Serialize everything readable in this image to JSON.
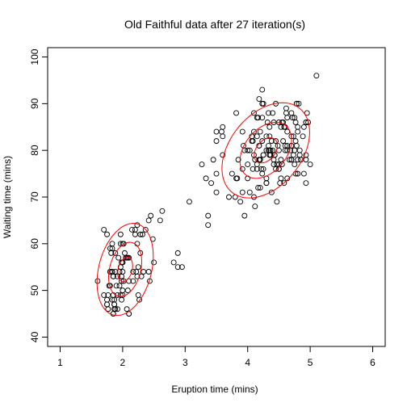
{
  "chart_data": {
    "type": "scatter",
    "title": "Old Faithful data after 27 iteration(s)",
    "xlabel": "Eruption time (mins)",
    "ylabel": "Waiting time (mins)",
    "xlim": [
      0.8,
      6.2
    ],
    "ylim": [
      38,
      102
    ],
    "xticks": [
      "1",
      "2",
      "3",
      "4",
      "5",
      "6"
    ],
    "yticks": [
      "40",
      "50",
      "60",
      "70",
      "80",
      "90",
      "100"
    ],
    "grid": false,
    "contour_color": "#ff0000",
    "clusters": [
      {
        "mean": [
          2.04,
          54.5
        ],
        "cov": [
          [
            0.07,
            0.44
          ],
          [
            0.44,
            33.7
          ]
        ]
      },
      {
        "mean": [
          4.29,
          80.0
        ],
        "cov": [
          [
            0.17,
            0.94
          ],
          [
            0.94,
            36.0
          ]
        ]
      }
    ],
    "contour_levels": [
      0.45,
      1.0,
      1.7
    ],
    "points": [
      [
        3.6,
        79
      ],
      [
        1.8,
        54
      ],
      [
        3.333,
        74
      ],
      [
        2.283,
        62
      ],
      [
        4.533,
        85
      ],
      [
        2.883,
        55
      ],
      [
        4.7,
        88
      ],
      [
        3.6,
        85
      ],
      [
        1.95,
        51
      ],
      [
        4.35,
        85
      ],
      [
        1.833,
        54
      ],
      [
        3.917,
        84
      ],
      [
        4.2,
        78
      ],
      [
        1.75,
        47
      ],
      [
        4.7,
        83
      ],
      [
        2.167,
        52
      ],
      [
        1.75,
        62
      ],
      [
        4.8,
        84
      ],
      [
        1.6,
        52
      ],
      [
        4.25,
        79
      ],
      [
        1.8,
        51
      ],
      [
        1.75,
        47
      ],
      [
        3.45,
        78
      ],
      [
        3.067,
        69
      ],
      [
        4.533,
        74
      ],
      [
        3.6,
        83
      ],
      [
        1.967,
        55
      ],
      [
        4.083,
        76
      ],
      [
        3.85,
        78
      ],
      [
        4.433,
        79
      ],
      [
        4.3,
        73
      ],
      [
        4.467,
        77
      ],
      [
        3.367,
        66
      ],
      [
        4.033,
        80
      ],
      [
        3.833,
        74
      ],
      [
        2.017,
        52
      ],
      [
        1.867,
        48
      ],
      [
        4.833,
        80
      ],
      [
        1.833,
        59
      ],
      [
        4.783,
        90
      ],
      [
        1.883,
        54
      ],
      [
        4.75,
        87
      ],
      [
        2.1,
        45
      ],
      [
        4.333,
        88
      ],
      [
        2.0,
        50
      ],
      [
        4.883,
        83
      ],
      [
        1.767,
        49
      ],
      [
        4.767,
        82
      ],
      [
        4.967,
        86
      ],
      [
        2.333,
        54
      ],
      [
        4.5,
        77
      ],
      [
        3.933,
        81
      ],
      [
        4.0,
        77
      ],
      [
        2.217,
        54
      ],
      [
        4.333,
        80
      ],
      [
        2.633,
        67
      ],
      [
        1.917,
        53
      ],
      [
        4.583,
        85
      ],
      [
        1.817,
        58
      ],
      [
        4.8,
        78
      ],
      [
        1.8,
        59
      ],
      [
        3.8,
        70
      ],
      [
        4.0,
        74
      ],
      [
        2.45,
        66
      ],
      [
        4.1,
        84
      ],
      [
        1.933,
        57
      ],
      [
        4.117,
        68
      ],
      [
        1.7,
        63
      ],
      [
        4.183,
        78
      ],
      [
        2.2,
        63
      ],
      [
        1.883,
        58
      ],
      [
        4.417,
        86
      ],
      [
        4.633,
        81
      ],
      [
        2.05,
        57
      ],
      [
        4.517,
        73
      ],
      [
        2.083,
        50
      ],
      [
        4.417,
        78
      ],
      [
        4.35,
        80
      ],
      [
        2.367,
        63
      ],
      [
        4.733,
        79
      ],
      [
        2.3,
        53
      ],
      [
        4.617,
        89
      ],
      [
        4.6,
        80
      ],
      [
        3.5,
        75
      ],
      [
        4.667,
        78
      ],
      [
        1.9,
        51
      ],
      [
        4.417,
        77
      ],
      [
        2.1,
        57
      ],
      [
        4.617,
        88
      ],
      [
        2.433,
        52
      ],
      [
        4.7,
        81
      ],
      [
        2.067,
        46
      ],
      [
        4.733,
        83
      ],
      [
        4.233,
        87
      ],
      [
        1.983,
        53
      ],
      [
        4.217,
        76
      ],
      [
        1.85,
        45
      ],
      [
        4.1,
        79
      ],
      [
        1.967,
        49
      ],
      [
        4.783,
        81
      ],
      [
        2.25,
        49
      ],
      [
        4.15,
        77
      ],
      [
        2.233,
        60
      ],
      [
        4.35,
        83
      ],
      [
        2.417,
        65
      ],
      [
        4.533,
        78
      ],
      [
        1.917,
        49
      ],
      [
        4.2,
        72
      ],
      [
        3.75,
        75
      ],
      [
        2.167,
        54
      ],
      [
        1.867,
        47
      ],
      [
        4.5,
        86
      ],
      [
        2.0,
        56
      ],
      [
        4.833,
        79
      ],
      [
        1.983,
        52
      ],
      [
        4.583,
        73
      ],
      [
        1.867,
        47
      ],
      [
        4.367,
        79
      ],
      [
        2.25,
        55
      ],
      [
        4.45,
        76
      ],
      [
        1.833,
        54
      ],
      [
        4.567,
        82
      ],
      [
        1.7,
        49
      ],
      [
        4.633,
        74
      ],
      [
        2.317,
        62
      ],
      [
        4.7,
        78
      ],
      [
        1.867,
        46
      ],
      [
        4.233,
        75
      ],
      [
        1.75,
        48
      ],
      [
        4.633,
        84
      ],
      [
        2.033,
        58
      ],
      [
        4.183,
        81
      ],
      [
        4.1,
        70
      ],
      [
        1.967,
        60
      ],
      [
        4.5,
        76
      ],
      [
        3.367,
        64
      ],
      [
        4.033,
        71
      ],
      [
        1.917,
        46
      ],
      [
        3.883,
        69
      ],
      [
        4.8,
        75
      ],
      [
        1.833,
        60
      ],
      [
        4.933,
        73
      ],
      [
        1.983,
        48
      ],
      [
        4.067,
        83
      ],
      [
        2.283,
        58
      ],
      [
        4.7,
        81
      ],
      [
        3.5,
        71
      ],
      [
        4.067,
        82
      ],
      [
        2.0,
        54
      ],
      [
        4.767,
        86
      ],
      [
        2.1,
        52
      ],
      [
        4.3,
        80
      ],
      [
        1.967,
        62
      ],
      [
        4.167,
        72
      ],
      [
        2.6,
        65
      ],
      [
        4.183,
        81
      ],
      [
        2.95,
        55
      ],
      [
        4.3,
        83
      ],
      [
        3.417,
        73
      ],
      [
        1.833,
        48
      ],
      [
        4.567,
        86
      ],
      [
        1.85,
        53
      ],
      [
        4.8,
        85
      ],
      [
        2.233,
        64
      ],
      [
        4.1,
        88
      ],
      [
        4.717,
        87
      ],
      [
        1.983,
        56
      ],
      [
        4.483,
        81
      ],
      [
        1.783,
        51
      ],
      [
        4.4,
        80
      ],
      [
        4.75,
        77
      ],
      [
        2.017,
        60
      ],
      [
        4.933,
        86
      ],
      [
        3.5,
        84
      ],
      [
        4.25,
        76
      ],
      [
        4.35,
        79
      ],
      [
        3.95,
        80
      ],
      [
        4.45,
        82
      ],
      [
        2.0,
        60
      ],
      [
        4.933,
        86
      ],
      [
        1.8,
        54
      ],
      [
        4.633,
        80
      ],
      [
        4.25,
        90
      ],
      [
        4.9,
        85
      ],
      [
        4.317,
        86
      ],
      [
        4.95,
        88
      ],
      [
        4.2,
        78
      ],
      [
        4.45,
        90
      ],
      [
        5.1,
        96
      ],
      [
        4.55,
        77
      ],
      [
        3.917,
        76
      ],
      [
        4.55,
        86
      ],
      [
        2.483,
        61
      ],
      [
        1.85,
        45
      ],
      [
        4.2,
        84
      ],
      [
        2.2,
        62
      ],
      [
        4.3,
        74
      ],
      [
        2.083,
        57
      ],
      [
        4.467,
        69
      ],
      [
        2.233,
        53
      ],
      [
        4.117,
        78
      ],
      [
        4.333,
        81
      ],
      [
        4.367,
        80
      ],
      [
        4.9,
        75
      ],
      [
        2.0,
        49
      ],
      [
        4.6,
        85
      ],
      [
        2.15,
        63
      ],
      [
        4.25,
        79
      ],
      [
        4.633,
        87
      ],
      [
        4.783,
        90
      ],
      [
        4.233,
        82
      ],
      [
        2.417,
        54
      ],
      [
        3.817,
        88
      ],
      [
        4.8,
        75
      ],
      [
        2.5,
        56
      ],
      [
        4.0,
        80
      ],
      [
        2.0,
        56
      ],
      [
        4.5,
        76
      ],
      [
        2.067,
        57
      ],
      [
        4.75,
        80
      ],
      [
        1.85,
        49
      ],
      [
        4.383,
        82
      ],
      [
        4.4,
        88
      ],
      [
        2.883,
        58
      ],
      [
        4.167,
        87
      ],
      [
        3.817,
        74
      ],
      [
        4.15,
        76
      ],
      [
        4.933,
        78
      ],
      [
        4.5,
        80
      ],
      [
        5.0,
        77
      ],
      [
        3.95,
        66
      ],
      [
        4.183,
        91
      ],
      [
        4.35,
        79
      ],
      [
        4.233,
        90
      ],
      [
        4.383,
        71
      ],
      [
        3.5,
        82
      ],
      [
        4.3,
        73
      ],
      [
        3.7,
        70
      ],
      [
        4.15,
        87
      ],
      [
        4.233,
        93
      ],
      [
        1.85,
        53
      ],
      [
        2.817,
        56
      ],
      [
        4.767,
        75
      ],
      [
        3.583,
        84
      ],
      [
        4.7,
        78
      ],
      [
        1.883,
        46
      ],
      [
        2.1,
        45
      ],
      [
        3.267,
        77
      ],
      [
        4.15,
        83
      ],
      [
        1.95,
        54
      ],
      [
        4.433,
        79
      ],
      [
        4.683,
        80
      ],
      [
        1.767,
        46
      ],
      [
        4.6,
        81
      ],
      [
        4.817,
        90
      ],
      [
        2.267,
        48
      ],
      [
        3.917,
        71
      ],
      [
        4.85,
        78
      ],
      [
        4.083,
        82
      ],
      [
        4.933,
        79
      ]
    ]
  }
}
